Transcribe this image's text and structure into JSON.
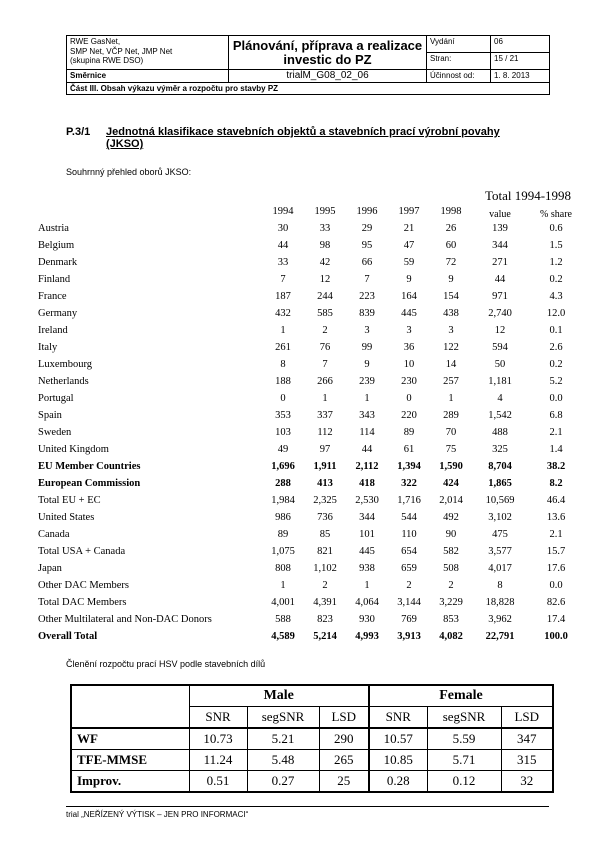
{
  "header": {
    "org_lines": [
      "RWE GasNet,",
      "SMP Net, VČP Net, JMP Net",
      "(skupina RWE DSO)"
    ],
    "title": "Plánování, příprava a realizace investic do PZ",
    "version_label": "Vydání",
    "version_value": "06",
    "page_label": "Stran:",
    "page_value": "15 / 21",
    "doctype": "Směrnice",
    "doc_id": "trialM_G08_02_06",
    "effective_label": "Účinnost od:",
    "effective_value": "1. 8. 2013",
    "part": "Část III. Obsah výkazu výměr a rozpočtu pro stavby PZ"
  },
  "section": {
    "number": "P.3/1",
    "title_line1": "Jednotná klasifikace stavebních objektů a stavebních prací výrobní povahy",
    "title_line2": "(JKSO)",
    "subtitle": "Souhrnný přehled oborů JKSO:"
  },
  "data_table": {
    "years": [
      "1994",
      "1995",
      "1996",
      "1997",
      "1998"
    ],
    "total_header": "Total 1994-1998",
    "value_header": "value",
    "share_header": "% share",
    "rows": [
      {
        "name": "Austria",
        "values": [
          "30",
          "33",
          "29",
          "21",
          "26"
        ],
        "total": "139",
        "share": "0.6",
        "bold": false
      },
      {
        "name": "Belgium",
        "values": [
          "44",
          "98",
          "95",
          "47",
          "60"
        ],
        "total": "344",
        "share": "1.5",
        "bold": false
      },
      {
        "name": "Denmark",
        "values": [
          "33",
          "42",
          "66",
          "59",
          "72"
        ],
        "total": "271",
        "share": "1.2",
        "bold": false
      },
      {
        "name": "Finland",
        "values": [
          "7",
          "12",
          "7",
          "9",
          "9"
        ],
        "total": "44",
        "share": "0.2",
        "bold": false
      },
      {
        "name": "France",
        "values": [
          "187",
          "244",
          "223",
          "164",
          "154"
        ],
        "total": "971",
        "share": "4.3",
        "bold": false
      },
      {
        "name": "Germany",
        "values": [
          "432",
          "585",
          "839",
          "445",
          "438"
        ],
        "total": "2,740",
        "share": "12.0",
        "bold": false
      },
      {
        "name": "Ireland",
        "values": [
          "1",
          "2",
          "3",
          "3",
          "3"
        ],
        "total": "12",
        "share": "0.1",
        "bold": false
      },
      {
        "name": "Italy",
        "values": [
          "261",
          "76",
          "99",
          "36",
          "122"
        ],
        "total": "594",
        "share": "2.6",
        "bold": false
      },
      {
        "name": "Luxembourg",
        "values": [
          "8",
          "7",
          "9",
          "10",
          "14"
        ],
        "total": "50",
        "share": "0.2",
        "bold": false
      },
      {
        "name": "Netherlands",
        "values": [
          "188",
          "266",
          "239",
          "230",
          "257"
        ],
        "total": "1,181",
        "share": "5.2",
        "bold": false
      },
      {
        "name": "Portugal",
        "values": [
          "0",
          "1",
          "1",
          "0",
          "1"
        ],
        "total": "4",
        "share": "0.0",
        "bold": false
      },
      {
        "name": "Spain",
        "values": [
          "353",
          "337",
          "343",
          "220",
          "289"
        ],
        "total": "1,542",
        "share": "6.8",
        "bold": false
      },
      {
        "name": "Sweden",
        "values": [
          "103",
          "112",
          "114",
          "89",
          "70"
        ],
        "total": "488",
        "share": "2.1",
        "bold": false
      },
      {
        "name": "United Kingdom",
        "values": [
          "49",
          "97",
          "44",
          "61",
          "75"
        ],
        "total": "325",
        "share": "1.4",
        "bold": false
      },
      {
        "name": "EU Member Countries",
        "values": [
          "1,696",
          "1,911",
          "2,112",
          "1,394",
          "1,590"
        ],
        "total": "8,704",
        "share": "38.2",
        "bold": true
      },
      {
        "name": "European Commission",
        "values": [
          "288",
          "413",
          "418",
          "322",
          "424"
        ],
        "total": "1,865",
        "share": "8.2",
        "bold": true
      },
      {
        "name": "Total EU + EC",
        "values": [
          "1,984",
          "2,325",
          "2,530",
          "1,716",
          "2,014"
        ],
        "total": "10,569",
        "share": "46.4",
        "bold": false
      },
      {
        "name": "United States",
        "values": [
          "986",
          "736",
          "344",
          "544",
          "492"
        ],
        "total": "3,102",
        "share": "13.6",
        "bold": false
      },
      {
        "name": "Canada",
        "values": [
          "89",
          "85",
          "101",
          "110",
          "90"
        ],
        "total": "475",
        "share": "2.1",
        "bold": false
      },
      {
        "name": "Total USA + Canada",
        "values": [
          "1,075",
          "821",
          "445",
          "654",
          "582"
        ],
        "total": "3,577",
        "share": "15.7",
        "bold": false
      },
      {
        "name": "Japan",
        "values": [
          "808",
          "1,102",
          "938",
          "659",
          "508"
        ],
        "total": "4,017",
        "share": "17.6",
        "bold": false
      },
      {
        "name": "Other DAC Members",
        "values": [
          "1",
          "2",
          "1",
          "2",
          "2"
        ],
        "total": "8",
        "share": "0.0",
        "bold": false
      },
      {
        "name": "Total DAC Members",
        "values": [
          "4,001",
          "4,391",
          "4,064",
          "3,144",
          "3,229"
        ],
        "total": "18,828",
        "share": "82.6",
        "bold": false
      },
      {
        "name": "Other Multilateral and Non-DAC Donors",
        "values": [
          "588",
          "823",
          "930",
          "769",
          "853"
        ],
        "total": "3,962",
        "share": "17.4",
        "bold": false
      },
      {
        "name": "Overall Total",
        "values": [
          "4,589",
          "5,214",
          "4,993",
          "3,913",
          "4,082"
        ],
        "total": "22,791",
        "share": "100.0",
        "bold": true
      }
    ]
  },
  "caption2": "Členění rozpočtu prací HSV podle stavebních dílů",
  "results_table": {
    "group_male": "Male",
    "group_female": "Female",
    "columns": [
      "SNR",
      "segSNR",
      "LSD",
      "SNR",
      "segSNR",
      "LSD"
    ],
    "rows": [
      {
        "label": "WF",
        "values": [
          "10.73",
          "5.21",
          "290",
          "10.57",
          "5.59",
          "347"
        ]
      },
      {
        "label": "TFE-MMSE",
        "values": [
          "11.24",
          "5.48",
          "265",
          "10.85",
          "5.71",
          "315"
        ]
      },
      {
        "label": "Improv.",
        "values": [
          "0.51",
          "0.27",
          "25",
          "0.28",
          "0.12",
          "32"
        ]
      }
    ]
  },
  "footer": "trial „NEŘÍZENÝ VÝTISK – JEN PRO INFORMACI“"
}
